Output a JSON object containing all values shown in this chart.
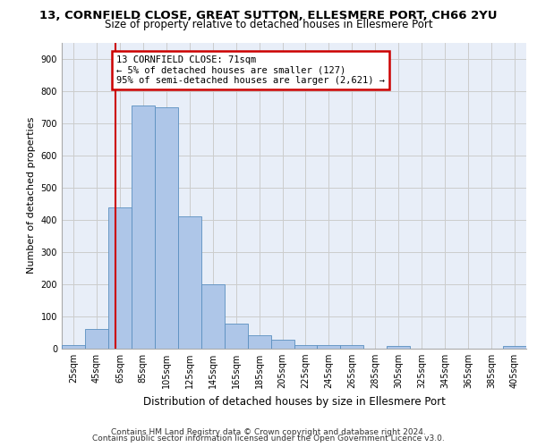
{
  "title": "13, CORNFIELD CLOSE, GREAT SUTTON, ELLESMERE PORT, CH66 2YU",
  "subtitle": "Size of property relative to detached houses in Ellesmere Port",
  "xlabel": "Distribution of detached houses by size in Ellesmere Port",
  "ylabel": "Number of detached properties",
  "footer_line1": "Contains HM Land Registry data © Crown copyright and database right 2024.",
  "footer_line2": "Contains public sector information licensed under the Open Government Licence v3.0.",
  "bins": [
    25,
    45,
    65,
    85,
    105,
    125,
    145,
    165,
    185,
    205,
    225,
    245,
    265,
    285,
    305,
    325,
    345,
    365,
    385,
    405,
    425
  ],
  "bar_heights": [
    10,
    60,
    438,
    755,
    750,
    410,
    200,
    78,
    42,
    27,
    12,
    12,
    10,
    0,
    8,
    0,
    0,
    0,
    0,
    8
  ],
  "bar_color": "#aec6e8",
  "bar_edge_color": "#5a8fc0",
  "vline_x": 71,
  "vline_color": "#cc0000",
  "annotation_line1": "13 CORNFIELD CLOSE: 71sqm",
  "annotation_line2": "← 5% of detached houses are smaller (127)",
  "annotation_line3": "95% of semi-detached houses are larger (2,621) →",
  "annotation_box_color": "#cc0000",
  "annotation_box_facecolor": "white",
  "ylim": [
    0,
    950
  ],
  "yticks": [
    0,
    100,
    200,
    300,
    400,
    500,
    600,
    700,
    800,
    900
  ],
  "bg_color": "#e8eef8",
  "grid_color": "#cccccc",
  "title_fontsize": 9.5,
  "subtitle_fontsize": 8.5,
  "axis_label_fontsize": 8,
  "tick_fontsize": 7,
  "footer_fontsize": 6.5
}
